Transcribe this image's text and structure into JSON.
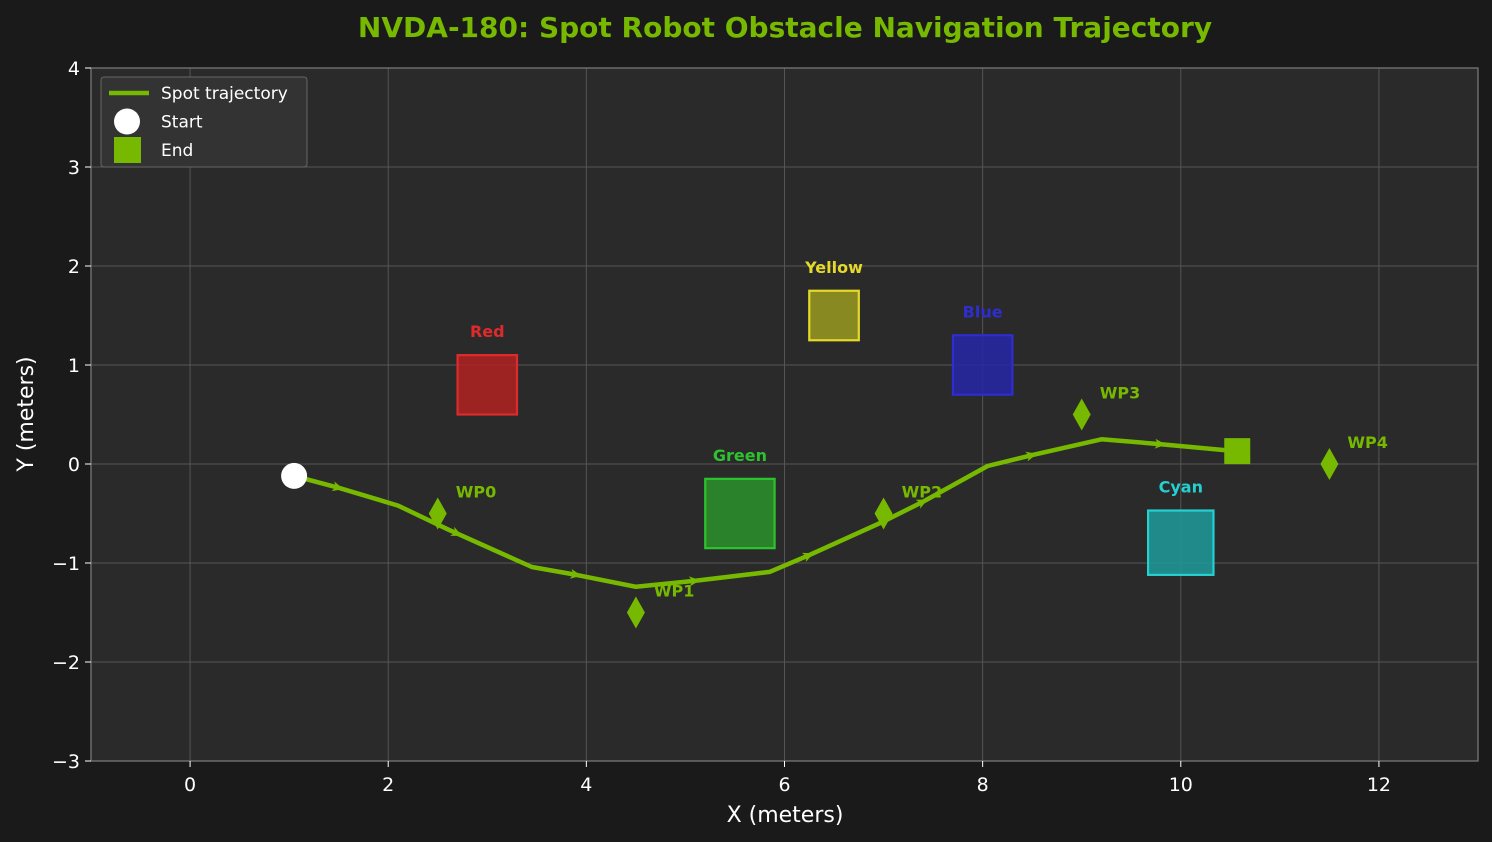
{
  "chart_data": {
    "type": "line",
    "title": "NVDA-180: Spot Robot Obstacle Navigation Trajectory",
    "xlabel": "X (meters)",
    "ylabel": "Y (meters)",
    "xlim": [
      -1,
      13
    ],
    "ylim": [
      -3,
      4
    ],
    "x_ticks": [
      0,
      2,
      4,
      6,
      8,
      10,
      12
    ],
    "y_ticks": [
      -3,
      -2,
      -1,
      0,
      1,
      2,
      3,
      4
    ],
    "x_tick_labels": [
      "0",
      "2",
      "4",
      "6",
      "8",
      "10",
      "12"
    ],
    "y_tick_labels": [
      "−3",
      "−2",
      "−1",
      "0",
      "1",
      "2",
      "3",
      "4"
    ],
    "grid": true,
    "legend_position": "top-left",
    "colors": {
      "background": "#1a1a1a",
      "plot_background": "#2a2a2a",
      "accent": "#76b900",
      "grid": "#555555",
      "text": "#ffffff"
    },
    "series": [
      {
        "name": "Spot trajectory",
        "color": "#76b900",
        "x": [
          1.05,
          1.5,
          2.1,
          2.6,
          3.45,
          3.9,
          4.5,
          5.1,
          5.85,
          6.25,
          7.0,
          7.4,
          8.05,
          8.5,
          9.2,
          9.8,
          10.55
        ],
        "y": [
          -0.12,
          -0.24,
          -0.42,
          -0.66,
          -1.04,
          -1.12,
          -1.24,
          -1.18,
          -1.09,
          -0.92,
          -0.58,
          -0.38,
          -0.02,
          0.09,
          0.25,
          0.2,
          0.13
        ]
      }
    ],
    "direction_arrows_x": [
      1.5,
      2.7,
      3.9,
      5.1,
      6.25,
      7.4,
      8.5,
      9.8
    ],
    "start": {
      "label": "Start",
      "x": 1.05,
      "y": -0.12,
      "color": "#ffffff"
    },
    "end": {
      "label": "End",
      "x": 10.57,
      "y": 0.13,
      "color": "#76b900"
    },
    "obstacles": [
      {
        "label": "Red",
        "x": [
          2.7,
          3.3
        ],
        "y": [
          0.5,
          1.1
        ],
        "color": "#b22222",
        "label_color": "#dd2b2b"
      },
      {
        "label": "Green",
        "x": [
          5.2,
          5.9
        ],
        "y": [
          -0.85,
          -0.15
        ],
        "color": "#2a922a",
        "label_color": "#2fc22f"
      },
      {
        "label": "Yellow",
        "x": [
          6.25,
          6.75
        ],
        "y": [
          1.25,
          1.75
        ],
        "color": "#9a9a20",
        "label_color": "#e5d92a"
      },
      {
        "label": "Blue",
        "x": [
          7.7,
          8.3
        ],
        "y": [
          0.7,
          1.3
        ],
        "color": "#2626a8",
        "label_color": "#2e2ed0"
      },
      {
        "label": "Cyan",
        "x": [
          9.67,
          10.33
        ],
        "y": [
          -1.12,
          -0.47
        ],
        "color": "#1f9a9a",
        "label_color": "#25d0d0"
      }
    ],
    "waypoints": [
      {
        "label": "WP0",
        "x": 2.5,
        "y": -0.5
      },
      {
        "label": "WP1",
        "x": 4.5,
        "y": -1.5
      },
      {
        "label": "WP2",
        "x": 7.0,
        "y": -0.5
      },
      {
        "label": "WP3",
        "x": 9.0,
        "y": 0.5
      },
      {
        "label": "WP4",
        "x": 11.5,
        "y": 0.0
      }
    ],
    "legend": [
      {
        "label": "Spot trajectory",
        "marker": "line"
      },
      {
        "label": "Start",
        "marker": "circle"
      },
      {
        "label": "End",
        "marker": "square"
      }
    ]
  }
}
